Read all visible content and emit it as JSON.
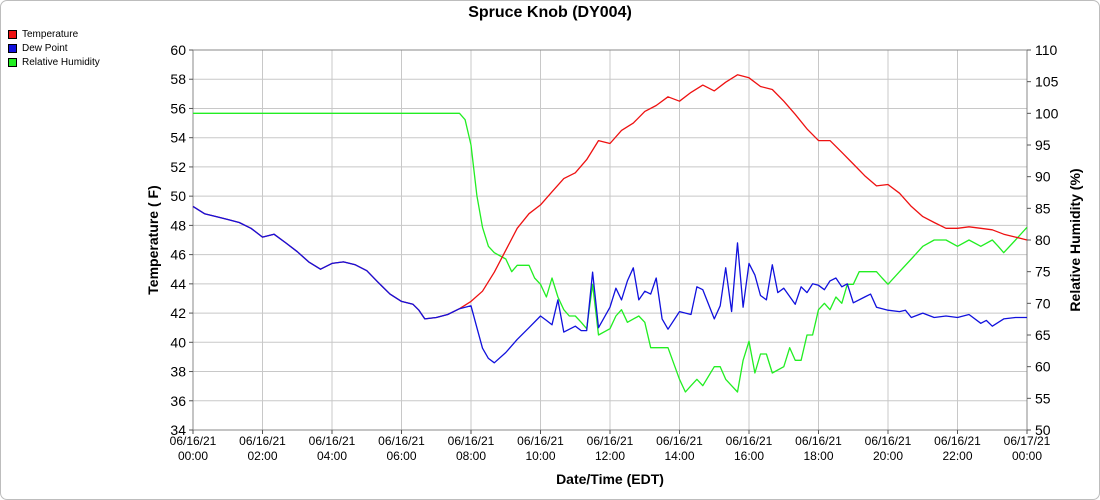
{
  "chart_data": {
    "type": "line",
    "title": "Spruce Knob (DY004)",
    "xlabel": "Date/Time (EDT)",
    "ylabel_left": "Temperature ( F)",
    "ylabel_right": "Relative Humidity (%)",
    "xlim": [
      0,
      24
    ],
    "ylim_left": [
      34,
      60
    ],
    "ylim_right": [
      50,
      110
    ],
    "grid": true,
    "legend_position": "top-left",
    "x_ticks": [
      {
        "date": "06/16/21",
        "time": "00:00",
        "value": 0
      },
      {
        "date": "06/16/21",
        "time": "02:00",
        "value": 2
      },
      {
        "date": "06/16/21",
        "time": "04:00",
        "value": 4
      },
      {
        "date": "06/16/21",
        "time": "06:00",
        "value": 6
      },
      {
        "date": "06/16/21",
        "time": "08:00",
        "value": 8
      },
      {
        "date": "06/16/21",
        "time": "10:00",
        "value": 10
      },
      {
        "date": "06/16/21",
        "time": "12:00",
        "value": 12
      },
      {
        "date": "06/16/21",
        "time": "14:00",
        "value": 14
      },
      {
        "date": "06/16/21",
        "time": "16:00",
        "value": 16
      },
      {
        "date": "06/16/21",
        "time": "18:00",
        "value": 18
      },
      {
        "date": "06/16/21",
        "time": "20:00",
        "value": 20
      },
      {
        "date": "06/16/21",
        "time": "22:00",
        "value": 22
      },
      {
        "date": "06/17/21",
        "time": "00:00",
        "value": 24
      }
    ],
    "y_ticks_left": [
      "34",
      "36",
      "38",
      "40",
      "42",
      "44",
      "46",
      "48",
      "50",
      "52",
      "54",
      "56",
      "58",
      "60"
    ],
    "y_ticks_right": [
      "50",
      "55",
      "60",
      "65",
      "70",
      "75",
      "80",
      "85",
      "90",
      "95",
      "100",
      "105",
      "110"
    ],
    "series": [
      {
        "name": "Temperature",
        "axis": "left",
        "color": "#ee1111",
        "points": [
          [
            0,
            49.3
          ],
          [
            0.33,
            48.8
          ],
          [
            0.67,
            48.6
          ],
          [
            1,
            48.4
          ],
          [
            1.33,
            48.2
          ],
          [
            1.67,
            47.8
          ],
          [
            2,
            47.2
          ],
          [
            2.33,
            47.4
          ],
          [
            2.67,
            46.8
          ],
          [
            3,
            46.2
          ],
          [
            3.33,
            45.5
          ],
          [
            3.67,
            45.0
          ],
          [
            4,
            45.4
          ],
          [
            4.33,
            45.5
          ],
          [
            4.67,
            45.3
          ],
          [
            5,
            44.9
          ],
          [
            5.33,
            44.1
          ],
          [
            5.67,
            43.3
          ],
          [
            6,
            42.8
          ],
          [
            6.33,
            42.6
          ],
          [
            6.5,
            42.2
          ],
          [
            6.67,
            41.6
          ],
          [
            7,
            41.7
          ],
          [
            7.33,
            41.9
          ],
          [
            7.67,
            42.3
          ],
          [
            8,
            42.8
          ],
          [
            8.33,
            43.5
          ],
          [
            8.67,
            44.8
          ],
          [
            9,
            46.3
          ],
          [
            9.33,
            47.8
          ],
          [
            9.67,
            48.8
          ],
          [
            10,
            49.4
          ],
          [
            10.33,
            50.3
          ],
          [
            10.67,
            51.2
          ],
          [
            11,
            51.6
          ],
          [
            11.33,
            52.5
          ],
          [
            11.67,
            53.8
          ],
          [
            12,
            53.6
          ],
          [
            12.33,
            54.5
          ],
          [
            12.67,
            55.0
          ],
          [
            13,
            55.8
          ],
          [
            13.33,
            56.2
          ],
          [
            13.67,
            56.8
          ],
          [
            14,
            56.5
          ],
          [
            14.33,
            57.1
          ],
          [
            14.67,
            57.6
          ],
          [
            15,
            57.2
          ],
          [
            15.33,
            57.8
          ],
          [
            15.67,
            58.3
          ],
          [
            16,
            58.1
          ],
          [
            16.33,
            57.5
          ],
          [
            16.67,
            57.3
          ],
          [
            17,
            56.5
          ],
          [
            17.33,
            55.6
          ],
          [
            17.67,
            54.6
          ],
          [
            18,
            53.8
          ],
          [
            18.33,
            53.8
          ],
          [
            18.67,
            53.0
          ],
          [
            19,
            52.2
          ],
          [
            19.33,
            51.4
          ],
          [
            19.67,
            50.7
          ],
          [
            20,
            50.8
          ],
          [
            20.33,
            50.2
          ],
          [
            20.67,
            49.3
          ],
          [
            21,
            48.6
          ],
          [
            21.33,
            48.2
          ],
          [
            21.67,
            47.8
          ],
          [
            22,
            47.8
          ],
          [
            22.33,
            47.9
          ],
          [
            22.67,
            47.8
          ],
          [
            23,
            47.7
          ],
          [
            23.33,
            47.4
          ],
          [
            23.67,
            47.2
          ],
          [
            24,
            47.0
          ]
        ]
      },
      {
        "name": "Dew Point",
        "axis": "left",
        "color": "#1111dd",
        "points": [
          [
            0,
            49.3
          ],
          [
            0.33,
            48.8
          ],
          [
            0.67,
            48.6
          ],
          [
            1,
            48.4
          ],
          [
            1.33,
            48.2
          ],
          [
            1.67,
            47.8
          ],
          [
            2,
            47.2
          ],
          [
            2.33,
            47.4
          ],
          [
            2.67,
            46.8
          ],
          [
            3,
            46.2
          ],
          [
            3.33,
            45.5
          ],
          [
            3.67,
            45.0
          ],
          [
            4,
            45.4
          ],
          [
            4.33,
            45.5
          ],
          [
            4.67,
            45.3
          ],
          [
            5,
            44.9
          ],
          [
            5.33,
            44.1
          ],
          [
            5.67,
            43.3
          ],
          [
            6,
            42.8
          ],
          [
            6.33,
            42.6
          ],
          [
            6.5,
            42.2
          ],
          [
            6.67,
            41.6
          ],
          [
            7,
            41.7
          ],
          [
            7.33,
            41.9
          ],
          [
            7.67,
            42.3
          ],
          [
            8,
            42.5
          ],
          [
            8.17,
            41.0
          ],
          [
            8.33,
            39.6
          ],
          [
            8.5,
            38.9
          ],
          [
            8.67,
            38.6
          ],
          [
            9,
            39.3
          ],
          [
            9.33,
            40.2
          ],
          [
            9.67,
            41.0
          ],
          [
            10,
            41.8
          ],
          [
            10.17,
            41.5
          ],
          [
            10.33,
            41.2
          ],
          [
            10.5,
            42.9
          ],
          [
            10.67,
            40.7
          ],
          [
            11,
            41.1
          ],
          [
            11.17,
            40.8
          ],
          [
            11.33,
            40.8
          ],
          [
            11.5,
            44.8
          ],
          [
            11.67,
            41.0
          ],
          [
            12,
            42.4
          ],
          [
            12.17,
            43.7
          ],
          [
            12.33,
            42.9
          ],
          [
            12.5,
            44.2
          ],
          [
            12.67,
            45.1
          ],
          [
            12.83,
            42.9
          ],
          [
            13,
            43.5
          ],
          [
            13.17,
            43.3
          ],
          [
            13.33,
            44.4
          ],
          [
            13.5,
            41.6
          ],
          [
            13.67,
            40.9
          ],
          [
            14,
            42.1
          ],
          [
            14.33,
            41.9
          ],
          [
            14.5,
            43.8
          ],
          [
            14.67,
            43.6
          ],
          [
            15,
            41.6
          ],
          [
            15.17,
            42.5
          ],
          [
            15.33,
            45.1
          ],
          [
            15.5,
            42.1
          ],
          [
            15.67,
            46.8
          ],
          [
            15.83,
            42.4
          ],
          [
            16,
            45.4
          ],
          [
            16.17,
            44.6
          ],
          [
            16.33,
            43.2
          ],
          [
            16.5,
            42.9
          ],
          [
            16.67,
            45.3
          ],
          [
            16.83,
            43.4
          ],
          [
            17,
            43.7
          ],
          [
            17.33,
            42.6
          ],
          [
            17.5,
            43.8
          ],
          [
            17.67,
            43.4
          ],
          [
            17.83,
            44.0
          ],
          [
            18,
            43.9
          ],
          [
            18.17,
            43.6
          ],
          [
            18.33,
            44.2
          ],
          [
            18.5,
            44.4
          ],
          [
            18.67,
            43.8
          ],
          [
            18.83,
            44.0
          ],
          [
            19,
            42.7
          ],
          [
            19.33,
            43.1
          ],
          [
            19.5,
            43.3
          ],
          [
            19.67,
            42.4
          ],
          [
            20,
            42.2
          ],
          [
            20.33,
            42.1
          ],
          [
            20.5,
            42.2
          ],
          [
            20.67,
            41.7
          ],
          [
            21,
            42.0
          ],
          [
            21.33,
            41.7
          ],
          [
            21.67,
            41.8
          ],
          [
            22,
            41.7
          ],
          [
            22.33,
            41.9
          ],
          [
            22.67,
            41.3
          ],
          [
            22.83,
            41.5
          ],
          [
            23,
            41.1
          ],
          [
            23.33,
            41.6
          ],
          [
            23.67,
            41.7
          ],
          [
            24,
            41.7
          ]
        ]
      },
      {
        "name": "Relative Humidity",
        "axis": "right",
        "color": "#22ee22",
        "points": [
          [
            0,
            100
          ],
          [
            7.67,
            100
          ],
          [
            7.83,
            99
          ],
          [
            8,
            95
          ],
          [
            8.17,
            87
          ],
          [
            8.33,
            82
          ],
          [
            8.5,
            79
          ],
          [
            8.67,
            78
          ],
          [
            9,
            77
          ],
          [
            9.17,
            75
          ],
          [
            9.33,
            76
          ],
          [
            9.67,
            76
          ],
          [
            9.83,
            74
          ],
          [
            10,
            73
          ],
          [
            10.17,
            71
          ],
          [
            10.33,
            74
          ],
          [
            10.5,
            71
          ],
          [
            10.67,
            69
          ],
          [
            10.83,
            68
          ],
          [
            11,
            68
          ],
          [
            11.17,
            67
          ],
          [
            11.33,
            66
          ],
          [
            11.5,
            73
          ],
          [
            11.67,
            65
          ],
          [
            12,
            66
          ],
          [
            12.17,
            68
          ],
          [
            12.33,
            69
          ],
          [
            12.5,
            67
          ],
          [
            12.83,
            68
          ],
          [
            13,
            67
          ],
          [
            13.17,
            63
          ],
          [
            13.33,
            63
          ],
          [
            13.67,
            63
          ],
          [
            14,
            58
          ],
          [
            14.17,
            56
          ],
          [
            14.33,
            57
          ],
          [
            14.5,
            58
          ],
          [
            14.67,
            57
          ],
          [
            15,
            60
          ],
          [
            15.17,
            60
          ],
          [
            15.33,
            58
          ],
          [
            15.5,
            57
          ],
          [
            15.67,
            56
          ],
          [
            15.83,
            61
          ],
          [
            16,
            64
          ],
          [
            16.17,
            59
          ],
          [
            16.33,
            62
          ],
          [
            16.5,
            62
          ],
          [
            16.67,
            59
          ],
          [
            17,
            60
          ],
          [
            17.17,
            63
          ],
          [
            17.33,
            61
          ],
          [
            17.5,
            61
          ],
          [
            17.67,
            65
          ],
          [
            17.83,
            65
          ],
          [
            18,
            69
          ],
          [
            18.17,
            70
          ],
          [
            18.33,
            69
          ],
          [
            18.5,
            71
          ],
          [
            18.67,
            70
          ],
          [
            18.83,
            73
          ],
          [
            19,
            73
          ],
          [
            19.17,
            75
          ],
          [
            19.33,
            75
          ],
          [
            19.67,
            75
          ],
          [
            19.83,
            74
          ],
          [
            20,
            73
          ],
          [
            20.33,
            75
          ],
          [
            20.67,
            77
          ],
          [
            21,
            79
          ],
          [
            21.33,
            80
          ],
          [
            21.67,
            80
          ],
          [
            22,
            79
          ],
          [
            22.33,
            80
          ],
          [
            22.67,
            79
          ],
          [
            23,
            80
          ],
          [
            23.17,
            79
          ],
          [
            23.33,
            78
          ],
          [
            23.67,
            80
          ],
          [
            24,
            82
          ]
        ]
      }
    ]
  }
}
